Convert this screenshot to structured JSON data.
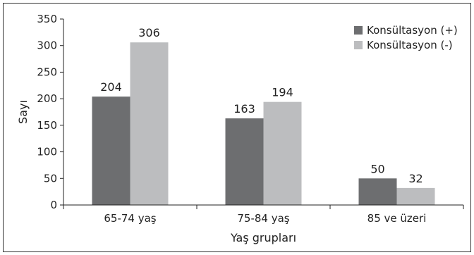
{
  "chart_data": {
    "type": "bar",
    "title": "",
    "xlabel": "Yaş grupları",
    "ylabel": "Sayı",
    "ylim": [
      0,
      350
    ],
    "yticks": [
      0,
      50,
      100,
      150,
      200,
      250,
      300,
      350
    ],
    "categories": [
      "65-74 yaş",
      "75-84 yaş",
      "85 ve üzeri"
    ],
    "series": [
      {
        "name": "Konsültasyon (+)",
        "values": [
          204,
          163,
          50
        ],
        "color": "#6d6e70"
      },
      {
        "name": "Konsültasyon (-)",
        "values": [
          306,
          194,
          32
        ],
        "color": "#bcbdbf"
      }
    ],
    "legend_position": "top-right",
    "grid": false,
    "data_labels": true
  }
}
